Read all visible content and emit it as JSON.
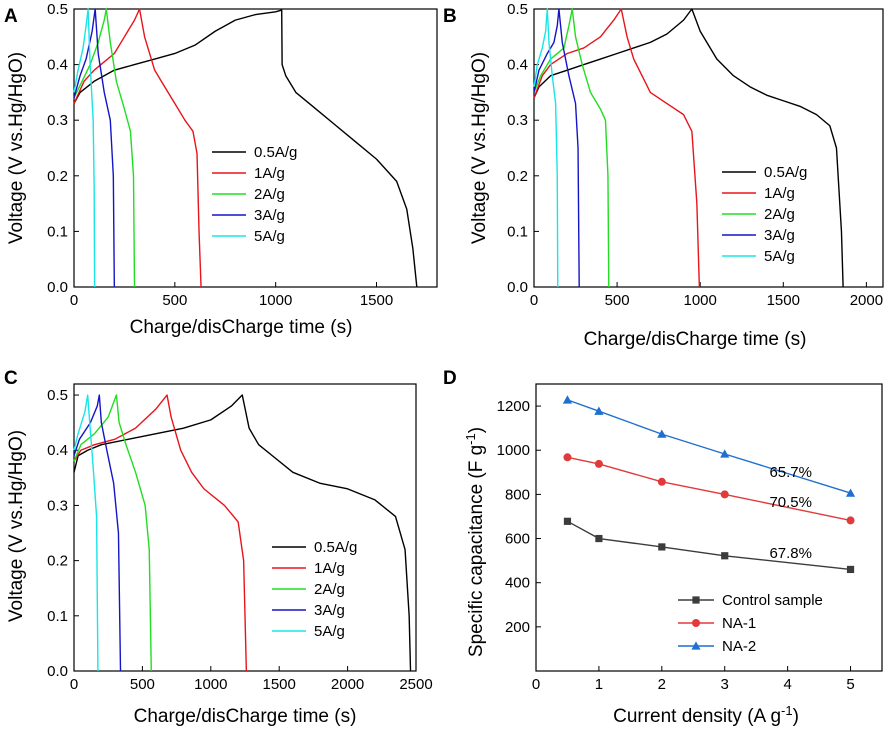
{
  "colors": {
    "black": "#000000",
    "red": "#e8141b",
    "green": "#22dd22",
    "blue": "#1414c8",
    "cyan": "#18e5e5",
    "control": "#3c3c3c",
    "na1": "#e23a3a",
    "na2": "#1f6fd0"
  },
  "chart_data": [
    {
      "panel": "A",
      "type": "line",
      "xlabel": "Charge/disCharge time (s)",
      "ylabel": "Voltage (V vs.Hg/HgO)",
      "xlim": [
        0,
        1800
      ],
      "ylim": [
        0,
        0.5
      ],
      "xticks": [
        0,
        500,
        1000,
        1500
      ],
      "yticks": [
        0.0,
        0.1,
        0.2,
        0.3,
        0.4,
        0.5
      ],
      "ytick_labels": [
        "0.0",
        "0.1",
        "0.2",
        "0.3",
        "0.4",
        "0.5"
      ],
      "legend_position": "center-right",
      "series": [
        {
          "name": "0.5A/g",
          "color": "#000000",
          "points": [
            [
              0,
              0.33
            ],
            [
              30,
              0.35
            ],
            [
              100,
              0.37
            ],
            [
              200,
              0.39
            ],
            [
              300,
              0.4
            ],
            [
              400,
              0.41
            ],
            [
              500,
              0.42
            ],
            [
              600,
              0.435
            ],
            [
              700,
              0.46
            ],
            [
              800,
              0.48
            ],
            [
              900,
              0.49
            ],
            [
              1000,
              0.495
            ],
            [
              1030,
              0.498
            ],
            [
              1032,
              0.4
            ],
            [
              1050,
              0.38
            ],
            [
              1100,
              0.35
            ],
            [
              1200,
              0.32
            ],
            [
              1300,
              0.29
            ],
            [
              1400,
              0.26
            ],
            [
              1500,
              0.23
            ],
            [
              1600,
              0.19
            ],
            [
              1650,
              0.14
            ],
            [
              1680,
              0.07
            ],
            [
              1700,
              0.0
            ]
          ]
        },
        {
          "name": "1A/g",
          "color": "#e8141b",
          "points": [
            [
              0,
              0.33
            ],
            [
              50,
              0.37
            ],
            [
              100,
              0.39
            ],
            [
              150,
              0.405
            ],
            [
              200,
              0.42
            ],
            [
              250,
              0.45
            ],
            [
              300,
              0.48
            ],
            [
              325,
              0.5
            ],
            [
              350,
              0.45
            ],
            [
              400,
              0.39
            ],
            [
              450,
              0.36
            ],
            [
              500,
              0.33
            ],
            [
              550,
              0.3
            ],
            [
              590,
              0.28
            ],
            [
              610,
              0.24
            ],
            [
              620,
              0.1
            ],
            [
              630,
              0.0
            ]
          ]
        },
        {
          "name": "2A/g",
          "color": "#22dd22",
          "points": [
            [
              0,
              0.34
            ],
            [
              40,
              0.37
            ],
            [
              80,
              0.4
            ],
            [
              120,
              0.44
            ],
            [
              150,
              0.48
            ],
            [
              160,
              0.5
            ],
            [
              180,
              0.44
            ],
            [
              210,
              0.37
            ],
            [
              250,
              0.32
            ],
            [
              280,
              0.28
            ],
            [
              295,
              0.2
            ],
            [
              300,
              0.0
            ]
          ]
        },
        {
          "name": "3A/g",
          "color": "#1414c8",
          "points": [
            [
              0,
              0.34
            ],
            [
              30,
              0.38
            ],
            [
              60,
              0.41
            ],
            [
              90,
              0.46
            ],
            [
              105,
              0.5
            ],
            [
              120,
              0.42
            ],
            [
              150,
              0.35
            ],
            [
              180,
              0.3
            ],
            [
              195,
              0.2
            ],
            [
              200,
              0.0
            ]
          ]
        },
        {
          "name": "5A/g",
          "color": "#18e5e5",
          "points": [
            [
              0,
              0.35
            ],
            [
              20,
              0.39
            ],
            [
              45,
              0.43
            ],
            [
              60,
              0.47
            ],
            [
              70,
              0.5
            ],
            [
              80,
              0.4
            ],
            [
              95,
              0.3
            ],
            [
              100,
              0.18
            ],
            [
              102,
              0.0
            ]
          ]
        }
      ]
    },
    {
      "panel": "B",
      "type": "line",
      "xlabel": "Charge/disCharge time (s)",
      "ylabel": "Voltage (V vs.Hg/HgO)",
      "xlim": [
        0,
        2100
      ],
      "ylim": [
        0,
        0.5
      ],
      "xticks": [
        0,
        500,
        1000,
        1500,
        2000
      ],
      "yticks": [
        0.0,
        0.1,
        0.2,
        0.3,
        0.4,
        0.5
      ],
      "ytick_labels": [
        "0.0",
        "0.1",
        "0.2",
        "0.3",
        "0.4",
        "0.5"
      ],
      "legend_position": "center-right",
      "series": [
        {
          "name": "0.5A/g",
          "color": "#000000",
          "points": [
            [
              0,
              0.34
            ],
            [
              30,
              0.36
            ],
            [
              100,
              0.38
            ],
            [
              200,
              0.39
            ],
            [
              300,
              0.4
            ],
            [
              400,
              0.41
            ],
            [
              500,
              0.42
            ],
            [
              600,
              0.43
            ],
            [
              700,
              0.44
            ],
            [
              800,
              0.455
            ],
            [
              900,
              0.48
            ],
            [
              950,
              0.5
            ],
            [
              1000,
              0.46
            ],
            [
              1100,
              0.41
            ],
            [
              1200,
              0.38
            ],
            [
              1300,
              0.36
            ],
            [
              1400,
              0.345
            ],
            [
              1500,
              0.335
            ],
            [
              1600,
              0.325
            ],
            [
              1700,
              0.31
            ],
            [
              1780,
              0.29
            ],
            [
              1820,
              0.25
            ],
            [
              1850,
              0.1
            ],
            [
              1860,
              0.0
            ]
          ]
        },
        {
          "name": "1A/g",
          "color": "#e8141b",
          "points": [
            [
              0,
              0.34
            ],
            [
              50,
              0.38
            ],
            [
              100,
              0.4
            ],
            [
              200,
              0.42
            ],
            [
              300,
              0.43
            ],
            [
              400,
              0.45
            ],
            [
              480,
              0.48
            ],
            [
              525,
              0.5
            ],
            [
              560,
              0.45
            ],
            [
              600,
              0.41
            ],
            [
              650,
              0.38
            ],
            [
              700,
              0.35
            ],
            [
              800,
              0.33
            ],
            [
              900,
              0.31
            ],
            [
              950,
              0.28
            ],
            [
              980,
              0.15
            ],
            [
              995,
              0.0
            ]
          ]
        },
        {
          "name": "2A/g",
          "color": "#22dd22",
          "points": [
            [
              0,
              0.35
            ],
            [
              40,
              0.38
            ],
            [
              100,
              0.41
            ],
            [
              180,
              0.43
            ],
            [
              210,
              0.47
            ],
            [
              230,
              0.5
            ],
            [
              250,
              0.45
            ],
            [
              290,
              0.4
            ],
            [
              340,
              0.35
            ],
            [
              400,
              0.32
            ],
            [
              430,
              0.3
            ],
            [
              445,
              0.2
            ],
            [
              450,
              0.0
            ]
          ]
        },
        {
          "name": "3A/g",
          "color": "#1414c8",
          "points": [
            [
              0,
              0.35
            ],
            [
              30,
              0.39
            ],
            [
              80,
              0.42
            ],
            [
              120,
              0.44
            ],
            [
              140,
              0.47
            ],
            [
              150,
              0.5
            ],
            [
              170,
              0.44
            ],
            [
              210,
              0.38
            ],
            [
              250,
              0.33
            ],
            [
              265,
              0.25
            ],
            [
              272,
              0.0
            ]
          ]
        },
        {
          "name": "5A/g",
          "color": "#18e5e5",
          "points": [
            [
              0,
              0.36
            ],
            [
              20,
              0.4
            ],
            [
              50,
              0.43
            ],
            [
              70,
              0.46
            ],
            [
              80,
              0.5
            ],
            [
              90,
              0.44
            ],
            [
              110,
              0.38
            ],
            [
              130,
              0.33
            ],
            [
              140,
              0.2
            ],
            [
              143,
              0.0
            ]
          ]
        }
      ]
    },
    {
      "panel": "C",
      "type": "line",
      "xlabel": "Charge/disCharge time (s)",
      "ylabel": "Voltage (V vs.Hg/HgO)",
      "xlim": [
        0,
        2500
      ],
      "ylim": [
        0,
        0.52
      ],
      "xticks": [
        0,
        500,
        1000,
        1500,
        2000,
        2500
      ],
      "yticks": [
        0.0,
        0.1,
        0.2,
        0.3,
        0.4,
        0.5
      ],
      "ytick_labels": [
        "0.0",
        "0.1",
        "0.2",
        "0.3",
        "0.4",
        "0.5"
      ],
      "legend_position": "center-right",
      "series": [
        {
          "name": "0.5A/g",
          "color": "#000000",
          "points": [
            [
              0,
              0.36
            ],
            [
              30,
              0.39
            ],
            [
              100,
              0.4
            ],
            [
              200,
              0.41
            ],
            [
              400,
              0.42
            ],
            [
              600,
              0.43
            ],
            [
              800,
              0.44
            ],
            [
              1000,
              0.455
            ],
            [
              1150,
              0.48
            ],
            [
              1230,
              0.5
            ],
            [
              1280,
              0.44
            ],
            [
              1350,
              0.41
            ],
            [
              1450,
              0.39
            ],
            [
              1600,
              0.36
            ],
            [
              1800,
              0.34
            ],
            [
              2000,
              0.33
            ],
            [
              2200,
              0.31
            ],
            [
              2350,
              0.28
            ],
            [
              2420,
              0.22
            ],
            [
              2450,
              0.1
            ],
            [
              2460,
              0.0
            ]
          ]
        },
        {
          "name": "1A/g",
          "color": "#e8141b",
          "points": [
            [
              0,
              0.38
            ],
            [
              50,
              0.4
            ],
            [
              150,
              0.41
            ],
            [
              300,
              0.42
            ],
            [
              450,
              0.44
            ],
            [
              600,
              0.475
            ],
            [
              680,
              0.5
            ],
            [
              710,
              0.46
            ],
            [
              780,
              0.4
            ],
            [
              860,
              0.36
            ],
            [
              950,
              0.33
            ],
            [
              1100,
              0.3
            ],
            [
              1200,
              0.27
            ],
            [
              1240,
              0.2
            ],
            [
              1260,
              0.0
            ]
          ]
        },
        {
          "name": "2A/g",
          "color": "#22dd22",
          "points": [
            [
              0,
              0.38
            ],
            [
              50,
              0.41
            ],
            [
              150,
              0.43
            ],
            [
              250,
              0.46
            ],
            [
              310,
              0.5
            ],
            [
              330,
              0.45
            ],
            [
              380,
              0.41
            ],
            [
              450,
              0.36
            ],
            [
              520,
              0.3
            ],
            [
              550,
              0.22
            ],
            [
              565,
              0.0
            ]
          ]
        },
        {
          "name": "3A/g",
          "color": "#1414c8",
          "points": [
            [
              0,
              0.39
            ],
            [
              40,
              0.42
            ],
            [
              120,
              0.45
            ],
            [
              170,
              0.48
            ],
            [
              185,
              0.5
            ],
            [
              200,
              0.45
            ],
            [
              240,
              0.4
            ],
            [
              290,
              0.34
            ],
            [
              325,
              0.25
            ],
            [
              340,
              0.0
            ]
          ]
        },
        {
          "name": "5A/g",
          "color": "#18e5e5",
          "points": [
            [
              0,
              0.4
            ],
            [
              30,
              0.43
            ],
            [
              80,
              0.47
            ],
            [
              100,
              0.5
            ],
            [
              115,
              0.45
            ],
            [
              140,
              0.37
            ],
            [
              165,
              0.28
            ],
            [
              175,
              0.0
            ]
          ]
        }
      ]
    },
    {
      "panel": "D",
      "type": "line",
      "markers": true,
      "xlabel": "Current density (A g",
      "xlabel_sup": "-1",
      "xlabel_end": ")",
      "ylabel": "Specific capacitance (F g",
      "ylabel_sup": "-1",
      "ylabel_end": ")",
      "xlim": [
        0,
        5.5
      ],
      "ylim": [
        0,
        1300
      ],
      "xticks": [
        0,
        1,
        2,
        3,
        4,
        5
      ],
      "yticks": [
        200,
        400,
        600,
        800,
        1000,
        1200
      ],
      "legend_position": "bottom-right",
      "series": [
        {
          "name": "Control sample",
          "color": "#3c3c3c",
          "marker": "square",
          "x": [
            0.5,
            1,
            2,
            3,
            5
          ],
          "values": [
            678,
            600,
            562,
            522,
            460
          ]
        },
        {
          "name": "NA-1",
          "color": "#e23a3a",
          "marker": "circle",
          "x": [
            0.5,
            1,
            2,
            3,
            5
          ],
          "values": [
            968,
            938,
            857,
            800,
            682
          ]
        },
        {
          "name": "NA-2",
          "color": "#1f6fd0",
          "marker": "triangle",
          "x": [
            0.5,
            1,
            2,
            3,
            5
          ],
          "values": [
            1228,
            1177,
            1073,
            983,
            806
          ]
        }
      ],
      "annotations": [
        "65.7%",
        "70.5%",
        "67.8%"
      ]
    }
  ]
}
